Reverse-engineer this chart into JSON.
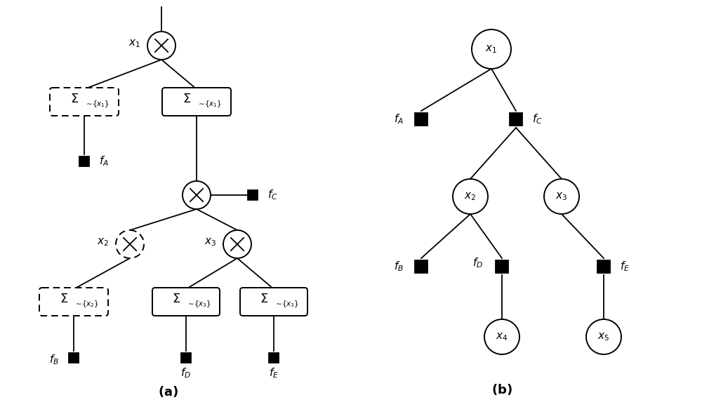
{
  "bg_color": "#ffffff",
  "fig_width": 10.0,
  "fig_height": 5.9
}
